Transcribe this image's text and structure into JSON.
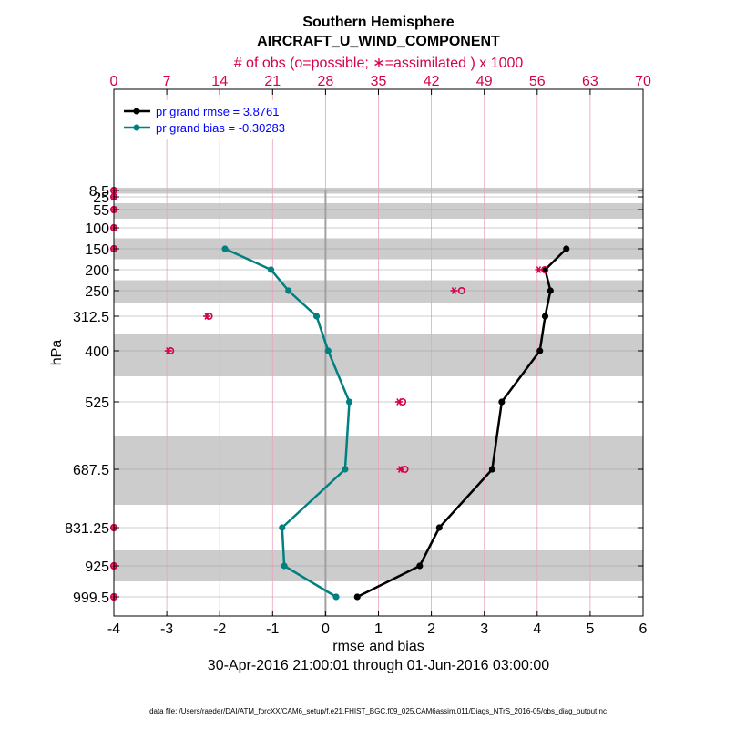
{
  "chart_data": {
    "type": "line",
    "title": "Southern Hemisphere",
    "subtitle": "AIRCRAFT_U_WIND_COMPONENT",
    "top_axis_label": "# of obs (o=possible; ∗=assimilated ) x 1000",
    "top_ticks": [
      "0",
      "7",
      "14",
      "21",
      "28",
      "35",
      "42",
      "49",
      "56",
      "63",
      "70"
    ],
    "top_range": [
      0,
      70
    ],
    "xlabel": "rmse and bias",
    "x_ticks": [
      "-4",
      "-3",
      "-2",
      "-1",
      "0",
      "1",
      "2",
      "3",
      "4",
      "5",
      "6"
    ],
    "xlim": [
      -4,
      6
    ],
    "ylabel": "hPa",
    "y_levels": [
      8.5,
      25,
      55,
      100,
      150,
      200,
      250,
      312.5,
      400,
      525,
      687.5,
      831.25,
      925,
      999.5
    ],
    "y_tick_labels": [
      "8.5",
      "25",
      "55",
      "100",
      "150",
      "200",
      "250",
      "312.5",
      "400",
      "525",
      "687.5",
      "831.25",
      "925",
      "999.5"
    ],
    "date_range": "30-Apr-2016 21:00:01 through 01-Jun-2016 03:00:00",
    "footer": "data file: /Users/raeder/DAI/ATM_forcXX/CAM6_setup/f.e21.FHIST_BGC.f09_025.CAM6assim.011/Diags_NTrS_2016-05/obs_diag_output.nc",
    "series": [
      {
        "name": "rmse",
        "legend": "pr grand rmse = 3.8761",
        "color": "#000000",
        "levels": [
          150,
          200,
          250,
          312.5,
          400,
          525,
          687.5,
          831.25,
          925,
          999.5
        ],
        "values": [
          4.55,
          4.15,
          4.25,
          4.15,
          4.05,
          3.33,
          3.15,
          2.15,
          1.78,
          0.6
        ]
      },
      {
        "name": "bias",
        "legend": "pr grand bias = -0.30283",
        "color": "#008080",
        "levels": [
          150,
          200,
          250,
          312.5,
          400,
          525,
          687.5,
          831.25,
          925,
          999.5
        ],
        "values": [
          -1.9,
          -1.03,
          -0.7,
          -0.17,
          0.05,
          0.45,
          0.37,
          -0.82,
          -0.78,
          0.2
        ]
      }
    ],
    "obs_counts": {
      "levels": [
        8.5,
        25,
        55,
        100,
        150,
        200,
        250,
        312.5,
        400,
        525,
        687.5,
        831.25,
        925,
        999.5
      ],
      "possible": [
        0,
        0,
        0,
        0,
        0,
        57,
        46,
        12.6,
        7.5,
        38.2,
        38.5,
        0,
        0,
        0
      ],
      "assimilated": [
        0,
        0,
        0,
        0,
        0,
        56.2,
        45,
        12.3,
        7.2,
        37.7,
        37.9,
        0,
        0,
        0
      ]
    }
  }
}
